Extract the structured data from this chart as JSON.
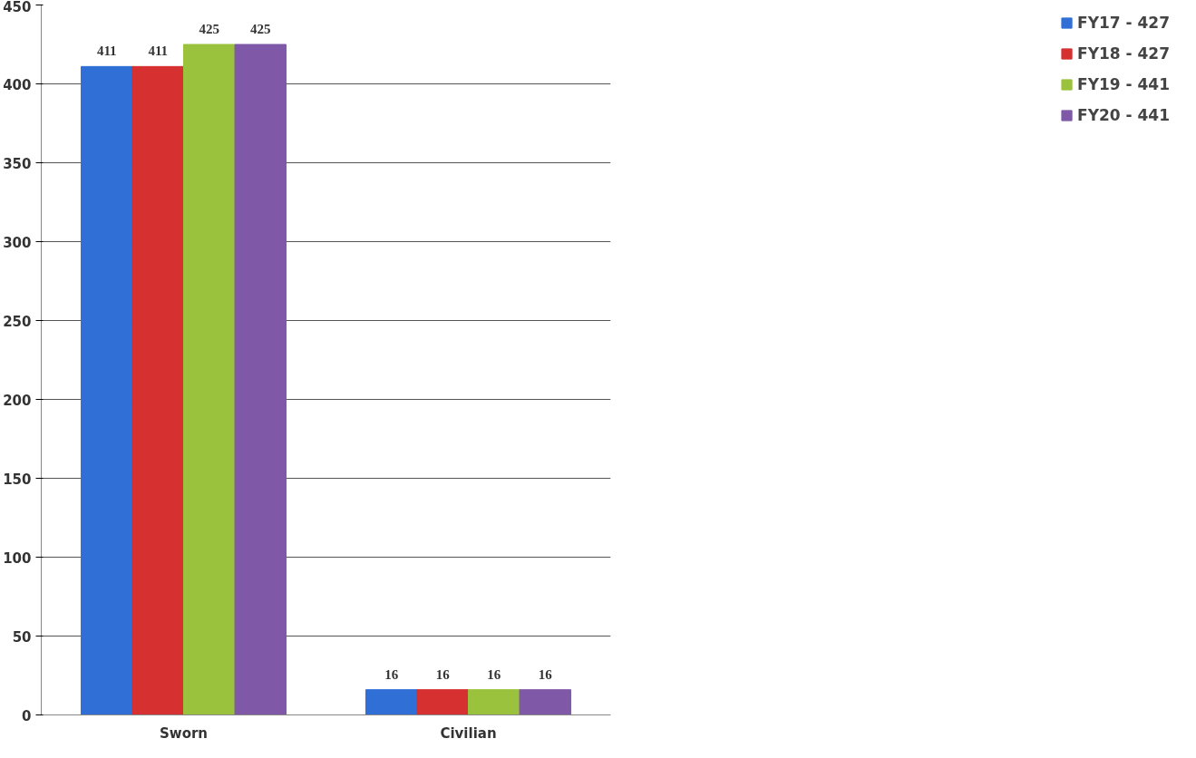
{
  "chart_data": {
    "type": "bar",
    "categories": [
      "Sworn",
      "Civilian"
    ],
    "series": [
      {
        "name": "FY17 - 427",
        "color": "#2f6fd6",
        "values": [
          411,
          16
        ]
      },
      {
        "name": "FY18 - 427",
        "color": "#d63030",
        "values": [
          411,
          16
        ]
      },
      {
        "name": "FY19 - 441",
        "color": "#9bc23c",
        "values": [
          425,
          16
        ]
      },
      {
        "name": "FY20 - 441",
        "color": "#7f59a8",
        "values": [
          425,
          16
        ]
      }
    ],
    "ylim": [
      0,
      450
    ],
    "yticks": [
      0,
      50,
      100,
      150,
      200,
      250,
      300,
      350,
      400,
      450
    ],
    "grid": "y",
    "legend": "right",
    "data_labels": true
  }
}
